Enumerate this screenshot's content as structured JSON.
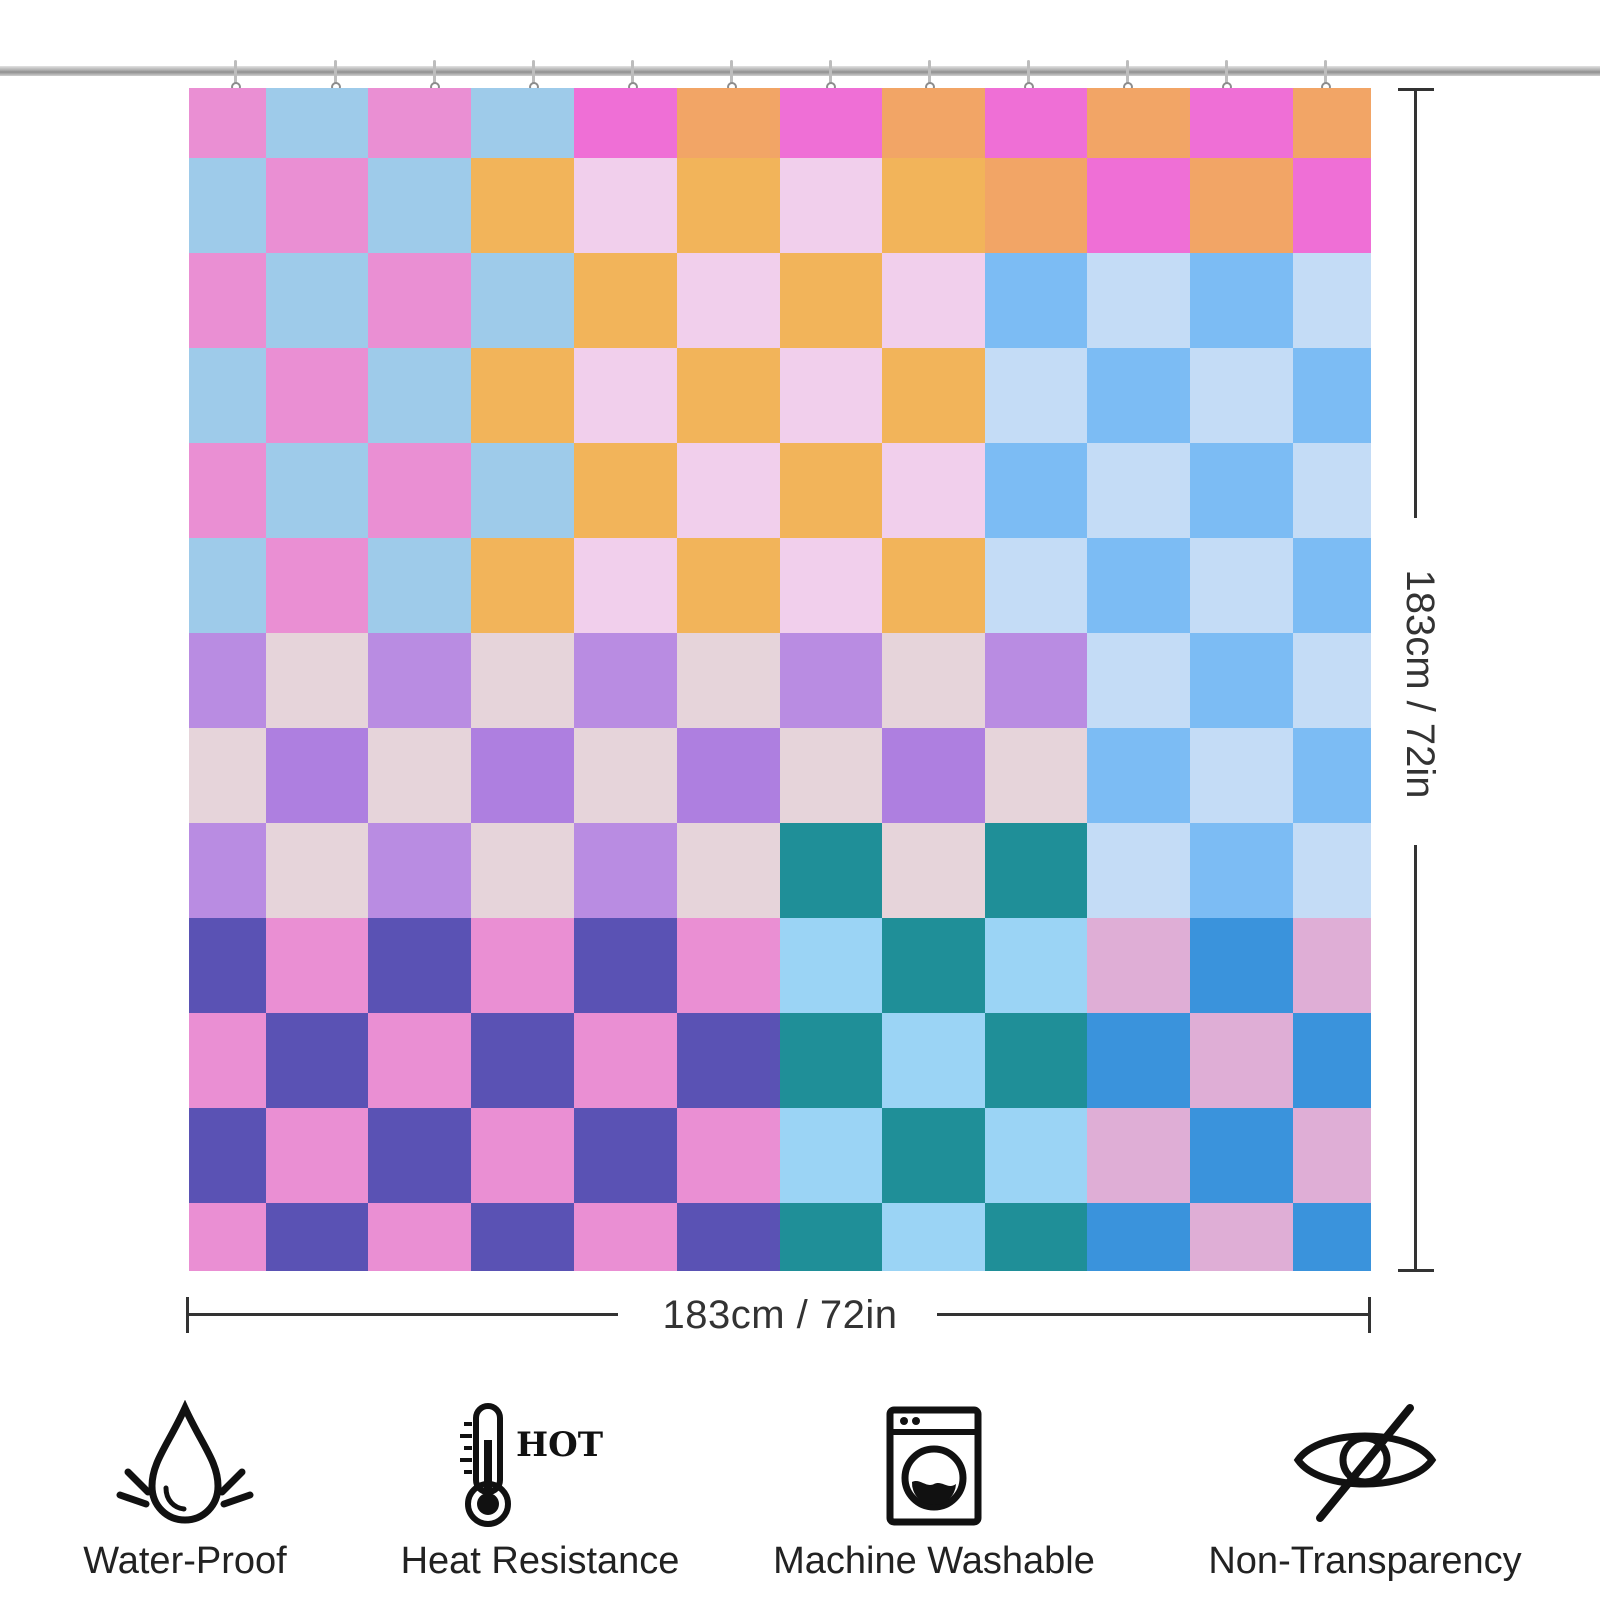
{
  "product": {
    "width_label": "183cm / 72in",
    "height_label": "183cm / 72in",
    "hooks_count": 12
  },
  "features": [
    {
      "icon": "water-drop-icon",
      "label": "Water-Proof"
    },
    {
      "icon": "thermometer-hot-icon",
      "label": "Heat Resistance",
      "badge": "HOT"
    },
    {
      "icon": "washing-machine-icon",
      "label": "Machine Washable"
    },
    {
      "icon": "crossed-eye-icon",
      "label": "Non-Transparency"
    }
  ],
  "palette": {
    "pink": "#ea8fd3",
    "light_blue": "#9ecbea",
    "magenta": "#ef6fd6",
    "orange": "#f2a566",
    "light_pink": "#f1cfec",
    "amber": "#f2b45a",
    "sky": "#7cbcf4",
    "pale_blue": "#c4dcf6",
    "lavender": "#b98ce2",
    "blush": "#e6d4da",
    "purple": "#ae7fe0",
    "teal": "#1f8f98",
    "indigo": "#5a52b4",
    "pale_sky": "#9bd4f5",
    "mauve": "#dfaed6",
    "blue": "#3a93dc"
  }
}
